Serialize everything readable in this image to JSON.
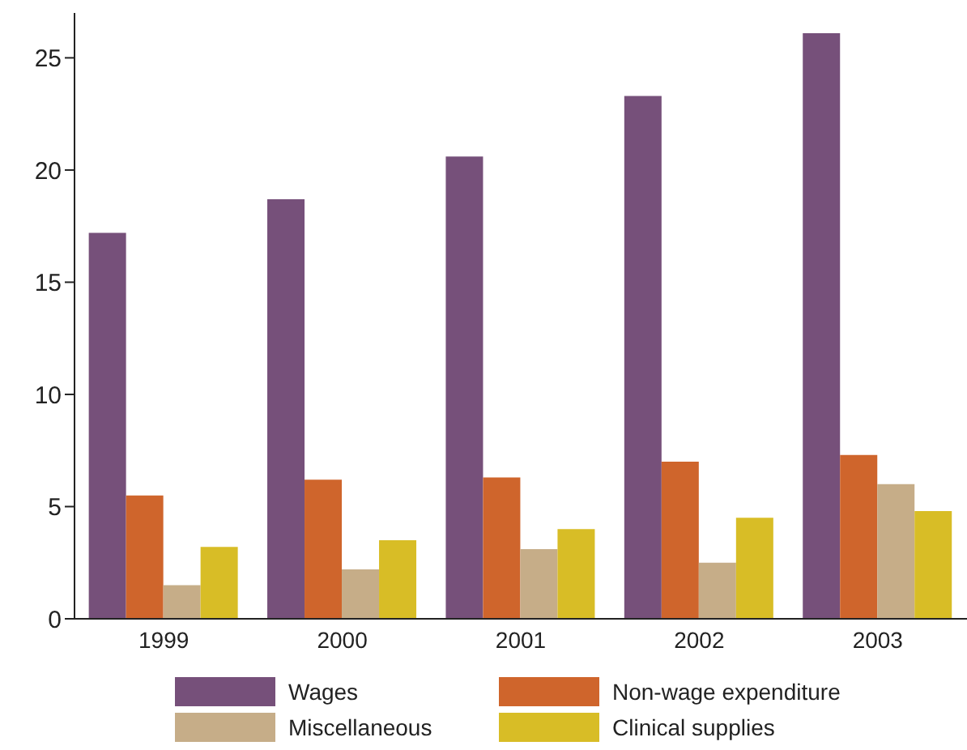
{
  "chart_data": {
    "type": "bar",
    "categories": [
      "1999",
      "2000",
      "2001",
      "2002",
      "2003"
    ],
    "series": [
      {
        "name": "Wages",
        "color": "#76507a",
        "values": [
          17.2,
          18.7,
          20.6,
          23.3,
          26.1
        ]
      },
      {
        "name": "Non-wage expenditure",
        "color": "#cf652c",
        "values": [
          5.5,
          6.2,
          6.3,
          7.0,
          7.3
        ]
      },
      {
        "name": "Miscellaneous",
        "color": "#c6ad88",
        "values": [
          1.5,
          2.2,
          3.1,
          2.5,
          6.0
        ]
      },
      {
        "name": "Clinical supplies",
        "color": "#d8bd26",
        "values": [
          3.2,
          3.5,
          4.0,
          4.5,
          4.8
        ]
      }
    ],
    "ylim": [
      0,
      27
    ],
    "yticks": [
      0,
      5,
      10,
      15,
      20,
      25
    ],
    "grid": false,
    "legend": "bottom"
  }
}
